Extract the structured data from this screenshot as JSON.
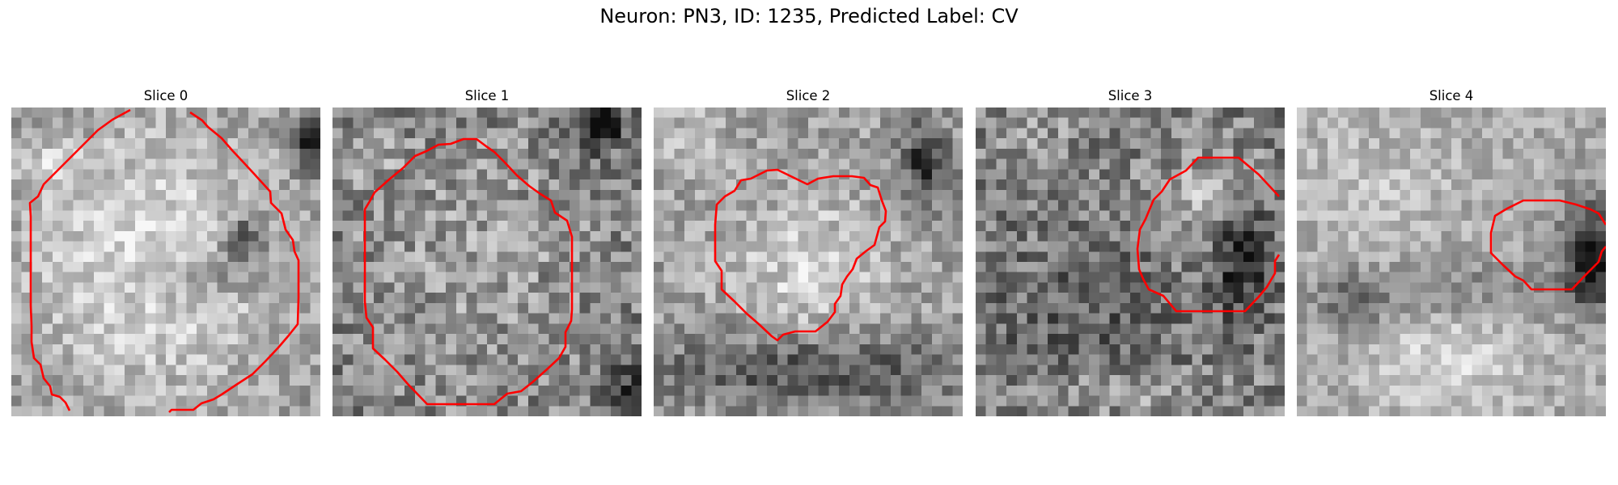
{
  "figure": {
    "title": "Neuron: PN3, ID: 1235, Predicted Label: CV"
  },
  "panels": [
    {
      "title": "Slice 0"
    },
    {
      "title": "Slice 1"
    },
    {
      "title": "Slice 2"
    },
    {
      "title": "Slice 3"
    },
    {
      "title": "Slice 4"
    }
  ],
  "style": {
    "contour_color": "#ff0000",
    "colormap": "grayscale"
  }
}
